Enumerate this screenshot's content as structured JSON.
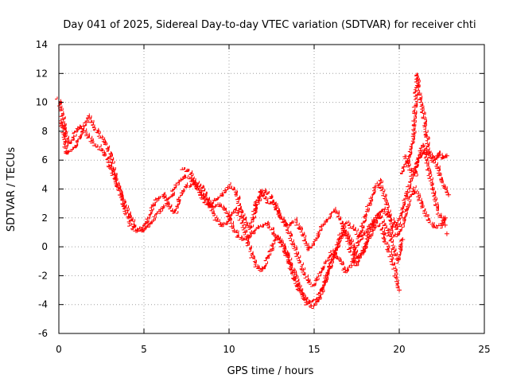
{
  "chart_data": {
    "type": "scatter",
    "title": "Day 041 of 2025, Sidereal Day-to-day VTEC variation (SDTVAR) for receiver chti",
    "xlabel": "GPS time / hours",
    "ylabel": "SDTVAR / TECUs",
    "xlim": [
      0,
      25
    ],
    "ylim": [
      -6,
      14
    ],
    "xticks": [
      0,
      5,
      10,
      15,
      20,
      25
    ],
    "yticks": [
      -6,
      -4,
      -2,
      0,
      2,
      4,
      6,
      8,
      10,
      12,
      14
    ],
    "grid": true,
    "marker": "+",
    "series": [
      {
        "name": "track-1",
        "color": "#ff0000",
        "points": [
          [
            0,
            10.2
          ],
          [
            0.2,
            9.5
          ],
          [
            0.4,
            8.0
          ],
          [
            0.6,
            7.0
          ],
          [
            0.9,
            7.5
          ],
          [
            1.2,
            8.3
          ],
          [
            1.6,
            8.0
          ],
          [
            2.0,
            7.2
          ],
          [
            2.4,
            6.9
          ],
          [
            2.8,
            6.3
          ],
          [
            3.2,
            5.2
          ],
          [
            3.6,
            3.8
          ],
          [
            4.0,
            2.6
          ],
          [
            4.3,
            1.8
          ],
          [
            4.6,
            1.2
          ],
          [
            5.0,
            1.1
          ],
          [
            5.4,
            1.5
          ],
          [
            5.8,
            2.2
          ],
          [
            6.2,
            2.8
          ],
          [
            6.6,
            3.4
          ],
          [
            7.0,
            4.3
          ],
          [
            7.4,
            4.8
          ],
          [
            7.8,
            4.6
          ],
          [
            8.2,
            4.0
          ],
          [
            8.6,
            3.4
          ],
          [
            9.0,
            2.7
          ],
          [
            9.4,
            2.9
          ],
          [
            9.8,
            2.6
          ],
          [
            10.2,
            1.5
          ],
          [
            10.6,
            0.6
          ],
          [
            11.0,
            0.5
          ],
          [
            11.4,
            0.9
          ],
          [
            11.8,
            1.3
          ],
          [
            12.2,
            1.6
          ],
          [
            12.6,
            1.1
          ],
          [
            13.0,
            0.4
          ],
          [
            13.4,
            -0.4
          ],
          [
            13.8,
            -1.6
          ],
          [
            14.2,
            -2.9
          ],
          [
            14.6,
            -4.0
          ],
          [
            15.0,
            -4.2
          ],
          [
            15.4,
            -3.5
          ],
          [
            15.8,
            -2.1
          ],
          [
            16.2,
            -0.6
          ],
          [
            16.6,
            0.8
          ],
          [
            17.0,
            1.6
          ],
          [
            17.4,
            1.2
          ],
          [
            17.8,
            0.5
          ],
          [
            18.2,
            1.2
          ],
          [
            18.6,
            1.8
          ],
          [
            19.0,
            1.2
          ],
          [
            19.4,
            -0.2
          ],
          [
            19.8,
            -1.8
          ],
          [
            20.0,
            -3.0
          ]
        ]
      },
      {
        "name": "track-2",
        "color": "#ff0000",
        "points": [
          [
            0.1,
            8.7
          ],
          [
            0.3,
            8.1
          ],
          [
            0.5,
            6.4
          ],
          [
            0.8,
            6.7
          ],
          [
            1.1,
            7.0
          ],
          [
            1.5,
            8.2
          ],
          [
            1.8,
            9.0
          ],
          [
            2.2,
            8.1
          ],
          [
            2.6,
            7.4
          ],
          [
            3.0,
            6.6
          ],
          [
            3.4,
            4.6
          ],
          [
            3.8,
            3.1
          ],
          [
            4.2,
            1.6
          ],
          [
            4.6,
            1.0
          ],
          [
            5.0,
            1.3
          ],
          [
            5.4,
            2.2
          ],
          [
            5.8,
            3.3
          ],
          [
            6.2,
            3.6
          ],
          [
            6.6,
            2.6
          ],
          [
            6.9,
            2.3
          ],
          [
            7.2,
            3.6
          ],
          [
            7.6,
            4.2
          ],
          [
            8.0,
            4.4
          ],
          [
            8.4,
            4.2
          ],
          [
            8.8,
            3.2
          ],
          [
            9.2,
            2.0
          ],
          [
            9.6,
            1.4
          ],
          [
            10.0,
            1.7
          ],
          [
            10.4,
            2.6
          ],
          [
            10.8,
            1.8
          ],
          [
            11.2,
            0.0
          ],
          [
            11.6,
            -1.4
          ],
          [
            12.0,
            -1.7
          ],
          [
            12.4,
            -0.6
          ],
          [
            12.8,
            0.6
          ],
          [
            13.2,
            0.2
          ],
          [
            13.6,
            -1.2
          ],
          [
            14.0,
            -2.6
          ],
          [
            14.4,
            -3.5
          ],
          [
            14.8,
            -4.0
          ],
          [
            15.2,
            -3.7
          ],
          [
            15.6,
            -2.6
          ],
          [
            16.0,
            -1.3
          ],
          [
            16.4,
            0.0
          ],
          [
            16.8,
            1.1
          ],
          [
            17.2,
            0.4
          ],
          [
            17.6,
            -0.9
          ],
          [
            18.0,
            -0.3
          ],
          [
            18.4,
            1.5
          ],
          [
            18.8,
            2.2
          ],
          [
            19.2,
            1.5
          ],
          [
            19.6,
            0.2
          ],
          [
            20.0,
            -1.1
          ],
          [
            20.2,
            0.5
          ]
        ]
      },
      {
        "name": "track-3",
        "color": "#ff0000",
        "points": [
          [
            7.3,
            5.3
          ],
          [
            7.7,
            5.2
          ],
          [
            8.1,
            4.3
          ],
          [
            8.5,
            3.3
          ],
          [
            8.9,
            2.7
          ],
          [
            9.3,
            3.3
          ],
          [
            9.7,
            3.6
          ],
          [
            10.1,
            4.2
          ],
          [
            10.5,
            3.6
          ],
          [
            10.9,
            2.0
          ],
          [
            11.3,
            1.2
          ],
          [
            11.7,
            3.0
          ],
          [
            12.1,
            3.8
          ],
          [
            12.5,
            3.5
          ],
          [
            12.9,
            2.4
          ],
          [
            13.3,
            1.6
          ],
          [
            13.7,
            0.6
          ],
          [
            14.1,
            -0.7
          ],
          [
            14.5,
            -2.0
          ],
          [
            14.9,
            -2.8
          ],
          [
            15.3,
            -2.1
          ],
          [
            15.7,
            -1.2
          ],
          [
            16.1,
            -0.4
          ],
          [
            16.5,
            -0.8
          ],
          [
            16.9,
            -1.8
          ],
          [
            17.3,
            -1.2
          ],
          [
            17.7,
            0.6
          ],
          [
            18.1,
            2.3
          ],
          [
            18.5,
            3.7
          ],
          [
            18.9,
            4.5
          ],
          [
            19.3,
            3.0
          ],
          [
            19.7,
            0.7
          ],
          [
            20.1,
            0.9
          ],
          [
            20.5,
            2.6
          ],
          [
            20.9,
            4.0
          ],
          [
            21.3,
            3.1
          ],
          [
            21.7,
            2.0
          ],
          [
            22.1,
            1.3
          ],
          [
            22.5,
            1.4
          ],
          [
            22.7,
            2.0
          ]
        ]
      },
      {
        "name": "track-4",
        "color": "#ff0000",
        "points": [
          [
            11.5,
            2.5
          ],
          [
            11.9,
            3.9
          ],
          [
            12.3,
            3.1
          ],
          [
            12.7,
            3.0
          ],
          [
            13.1,
            2.0
          ],
          [
            13.5,
            1.4
          ],
          [
            13.9,
            1.8
          ],
          [
            14.3,
            1.0
          ],
          [
            14.7,
            -0.2
          ],
          [
            15.1,
            0.3
          ],
          [
            15.5,
            1.4
          ],
          [
            15.9,
            2.0
          ],
          [
            16.3,
            2.5
          ],
          [
            16.7,
            1.5
          ],
          [
            17.1,
            0.0
          ],
          [
            17.5,
            -1.3
          ],
          [
            17.9,
            -0.4
          ],
          [
            18.3,
            0.5
          ],
          [
            18.7,
            1.8
          ],
          [
            19.1,
            2.6
          ],
          [
            19.5,
            2.0
          ],
          [
            19.9,
            1.2
          ],
          [
            20.3,
            2.9
          ],
          [
            20.7,
            4.5
          ],
          [
            21.1,
            5.8
          ],
          [
            21.5,
            6.6
          ],
          [
            21.9,
            6.2
          ],
          [
            22.3,
            5.5
          ],
          [
            22.7,
            4.0
          ],
          [
            22.9,
            3.6
          ]
        ]
      },
      {
        "name": "track-5",
        "color": "#ff0000",
        "points": [
          [
            20.2,
            5.0
          ],
          [
            20.6,
            6.2
          ],
          [
            20.9,
            7.5
          ],
          [
            21.0,
            10.5
          ],
          [
            21.1,
            11.9
          ],
          [
            21.2,
            10.7
          ],
          [
            21.4,
            9.6
          ],
          [
            21.6,
            8.3
          ],
          [
            21.8,
            6.6
          ],
          [
            22.0,
            6.1
          ],
          [
            22.2,
            5.9
          ],
          [
            22.4,
            6.5
          ],
          [
            22.6,
            6.0
          ],
          [
            22.8,
            6.3
          ]
        ]
      },
      {
        "name": "track-6",
        "color": "#ff0000",
        "points": [
          [
            20.4,
            6.3
          ],
          [
            20.7,
            5.3
          ],
          [
            21.0,
            5.0
          ],
          [
            21.3,
            6.8
          ],
          [
            21.5,
            7.0
          ],
          [
            21.7,
            5.6
          ],
          [
            21.9,
            4.6
          ],
          [
            22.1,
            3.6
          ],
          [
            22.3,
            2.4
          ],
          [
            22.5,
            2.0
          ],
          [
            22.7,
            1.5
          ]
        ]
      },
      {
        "name": "track-7",
        "color": "#ff0000",
        "points": [
          [
            22.8,
            0.9
          ]
        ]
      }
    ]
  }
}
